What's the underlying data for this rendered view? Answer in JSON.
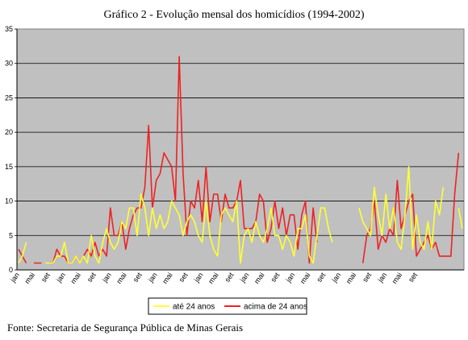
{
  "chart_data": {
    "type": "line",
    "title": "Gráfico 2 - Evolução mensal dos homicídios (1994-2002)",
    "xlabel": "",
    "ylabel": "",
    "ylim": [
      0,
      35
    ],
    "yticks": [
      0,
      5,
      10,
      15,
      20,
      25,
      30,
      35
    ],
    "grid": true,
    "legend_position": "bottom",
    "background_color": "#c0c0c0",
    "x_tick_labels": [
      "jan",
      "mai",
      "set",
      "jan",
      "mai",
      "set",
      "jan",
      "mai",
      "set",
      "jan",
      "mai",
      "set",
      "jan",
      "mai",
      "set",
      "jan",
      "mai",
      "set",
      "jan",
      "mai",
      "set",
      "jan",
      "mai",
      "set",
      "jan",
      "mai",
      "set"
    ],
    "series": [
      {
        "name": "até 24 anos",
        "color": "#ffff33",
        "values": [
          1,
          2,
          4,
          null,
          null,
          null,
          null,
          1,
          1,
          1,
          2,
          2,
          4,
          1,
          1,
          2,
          1,
          2,
          1,
          5,
          2,
          1,
          4,
          6,
          4,
          3,
          4,
          7,
          6,
          9,
          9,
          5,
          11,
          9,
          5,
          9,
          6,
          8,
          6,
          7,
          10,
          9,
          8,
          5,
          7,
          8,
          7,
          5,
          4,
          10,
          5,
          3,
          2,
          8,
          9,
          8,
          7,
          10,
          1,
          5,
          6,
          4,
          7,
          5,
          4,
          6,
          9,
          5,
          5,
          3,
          5,
          4,
          2,
          6,
          6,
          8,
          2,
          1,
          5,
          9,
          9,
          6,
          4,
          null,
          null,
          null,
          null,
          null,
          null,
          9,
          7,
          6,
          5,
          12,
          8,
          5,
          11,
          6,
          9,
          4,
          3,
          8,
          15,
          3,
          8,
          4,
          3,
          7,
          3,
          10,
          8,
          12,
          null,
          null,
          null,
          9,
          6
        ]
      },
      {
        "name": "acima de 24 anos",
        "color": "#ee2222",
        "values": [
          3,
          2,
          1,
          null,
          1,
          1,
          1,
          null,
          1,
          1,
          3,
          2,
          2,
          1,
          1,
          2,
          1,
          2,
          3,
          2,
          4,
          2,
          3,
          2,
          9,
          5,
          5,
          7,
          3,
          6,
          8,
          9,
          9,
          12,
          21,
          9,
          13,
          14,
          17,
          16,
          15,
          10,
          31,
          14,
          5,
          10,
          9,
          13,
          7,
          15,
          7,
          11,
          11,
          7,
          11,
          9,
          9,
          10,
          13,
          6,
          6,
          6,
          7,
          11,
          10,
          4,
          6,
          10,
          6,
          9,
          5,
          8,
          8,
          3,
          8,
          10,
          1,
          9,
          4,
          null,
          null,
          null,
          null,
          null,
          null,
          null,
          null,
          null,
          null,
          null,
          1,
          5,
          6,
          10,
          3,
          5,
          4,
          6,
          5,
          13,
          6,
          8,
          10,
          11,
          2,
          3,
          4,
          5,
          3,
          4,
          2,
          2,
          2,
          2,
          11,
          17
        ]
      }
    ]
  },
  "source_text": "Fonte: Secretaria de Segurança Pública de Minas Gerais"
}
